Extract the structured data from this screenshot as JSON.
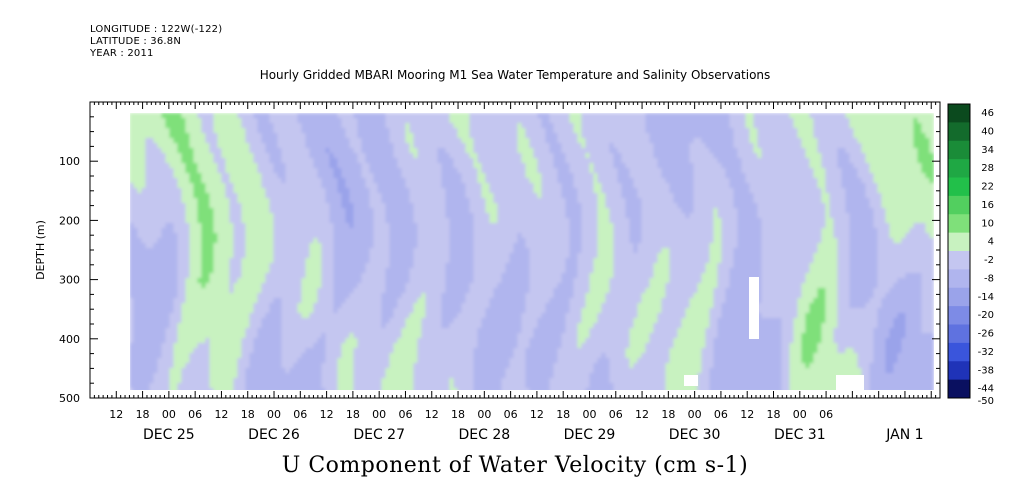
{
  "header": {
    "longitude": "LONGITUDE : 122W(-122)",
    "latitude": "LATITUDE : 36.8N",
    "year": "YEAR : 2011"
  },
  "title": "Hourly Gridded MBARI Mooring M1 Sea Water Temperature and Salinity Observations",
  "bottom_title": "U Component of Water Velocity (cm s-1)",
  "chart_data": {
    "type": "heatmap",
    "title": "Hourly Gridded MBARI Mooring M1 Sea Water Temperature and Salinity Observations",
    "xlabel": "",
    "ylabel": "DEPTH (m)",
    "colorbar_label": "U Component of Water Velocity (cm s-1)",
    "x_range": [
      "2011-12-24 06:00",
      "2012-01-01 08:00"
    ],
    "data_x_range": [
      "2011-12-24 15:00",
      "2012-01-01 06:00"
    ],
    "y_range": [
      500,
      0
    ],
    "y_ticks": [
      100,
      200,
      300,
      400,
      500
    ],
    "x_day_labels": [
      "DEC 25",
      "DEC 26",
      "DEC 27",
      "DEC 28",
      "DEC 29",
      "DEC 30",
      "DEC 31",
      "JAN 1"
    ],
    "x_hour_labels": [
      "12",
      "18",
      "00",
      "06",
      "12",
      "18",
      "00",
      "06",
      "12",
      "18",
      "00",
      "06",
      "12",
      "18",
      "00",
      "06",
      "12",
      "18",
      "00",
      "06",
      "12",
      "18",
      "00",
      "06",
      "12",
      "18",
      "00",
      "06"
    ],
    "colorbar_levels": [
      46,
      40,
      34,
      28,
      22,
      16,
      10,
      4,
      -2,
      -8,
      -14,
      -20,
      -26,
      -32,
      -38,
      -44,
      -50
    ],
    "colors": {
      "positive_strong": "#0b4a1e",
      "positive_mid": "#22c04a",
      "positive_weak": "#7fe07a",
      "neutral_positive": "#c8f2c0",
      "neutral_negative": "#c4c6f0",
      "negative_weak": "#9aa3ea",
      "negative_mid": "#3a55dc",
      "negative_strong": "#0a1060"
    },
    "grid": false
  }
}
